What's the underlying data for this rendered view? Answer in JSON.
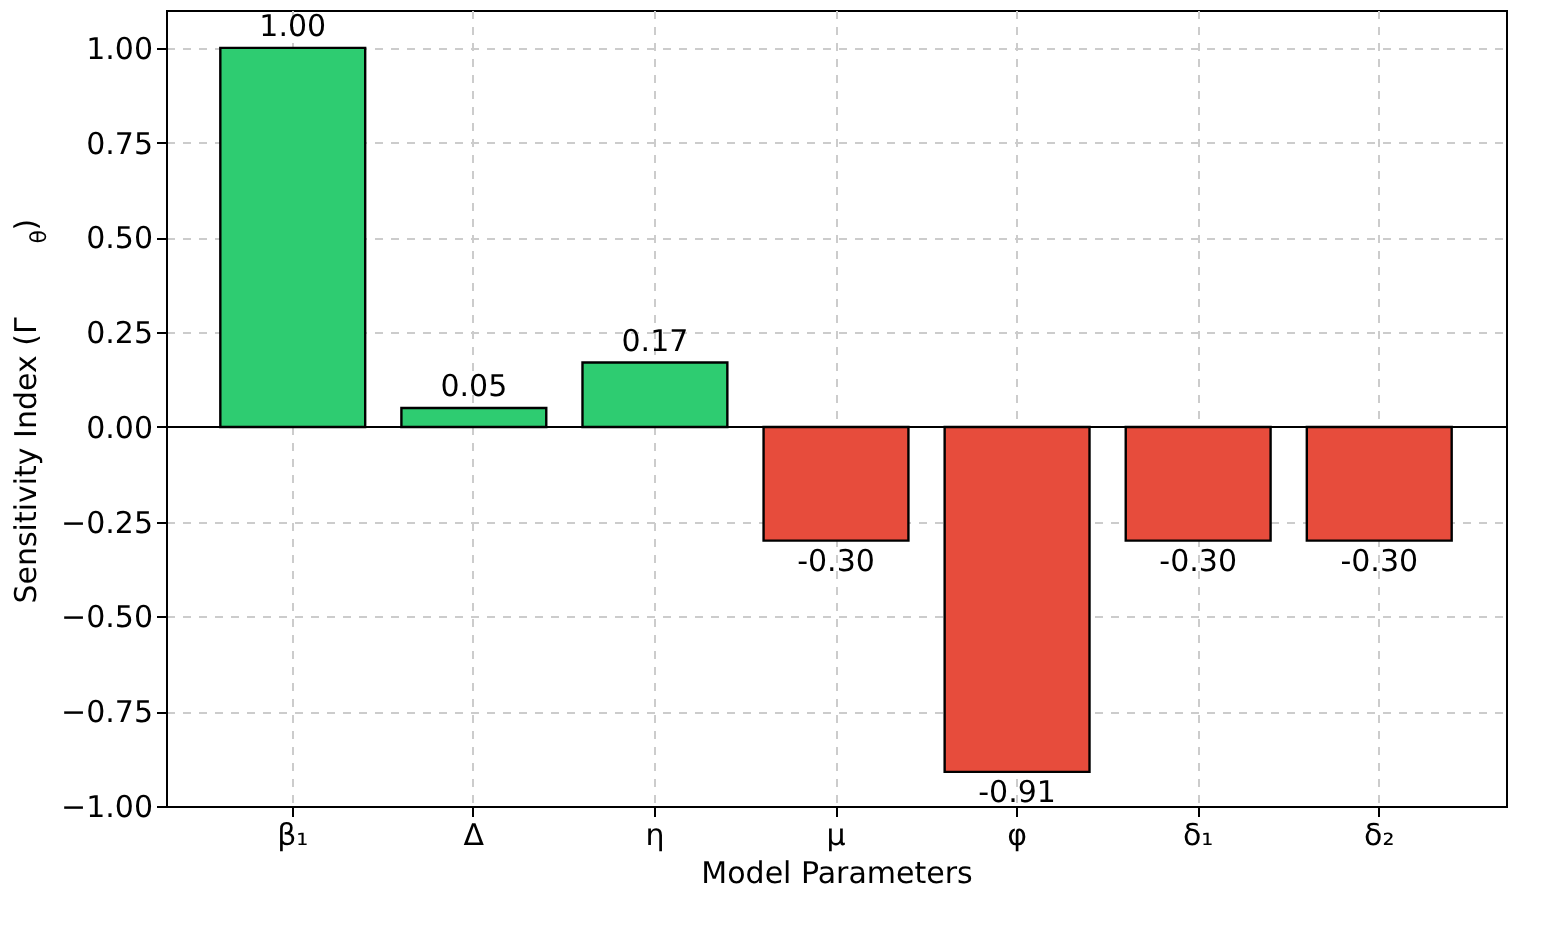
{
  "chart_data": {
    "type": "bar",
    "categories": [
      "β₁",
      "Δ",
      "η",
      "μ",
      "φ",
      "δ₁",
      "δ₂"
    ],
    "values": [
      1.0,
      0.05,
      0.17,
      -0.3,
      -0.91,
      -0.3,
      -0.3
    ],
    "value_labels": [
      "1.00",
      "0.05",
      "0.17",
      "-0.30",
      "-0.91",
      "-0.30",
      "-0.30"
    ],
    "colors": [
      "#2ecc71",
      "#2ecc71",
      "#2ecc71",
      "#e74c3c",
      "#e74c3c",
      "#e74c3c",
      "#e74c3c"
    ],
    "xlabel": "Model Parameters",
    "ylabel": "Sensitivity Index (Γ$_{θ}$)",
    "ylim": [
      -1.0,
      1.1
    ],
    "yticks": [
      {
        "value": -1.0,
        "label": "−1.00"
      },
      {
        "value": -0.75,
        "label": "−0.75"
      },
      {
        "value": -0.5,
        "label": "−0.50"
      },
      {
        "value": -0.25,
        "label": "−0.25"
      },
      {
        "value": 0.0,
        "label": "0.00"
      },
      {
        "value": 0.25,
        "label": "0.25"
      },
      {
        "value": 0.5,
        "label": "0.50"
      },
      {
        "value": 0.75,
        "label": "0.75"
      },
      {
        "value": 1.0,
        "label": "1.00"
      }
    ],
    "ref_lines": [
      {
        "axis": "y",
        "value": 0,
        "color": "#000000"
      }
    ],
    "grid": true
  }
}
